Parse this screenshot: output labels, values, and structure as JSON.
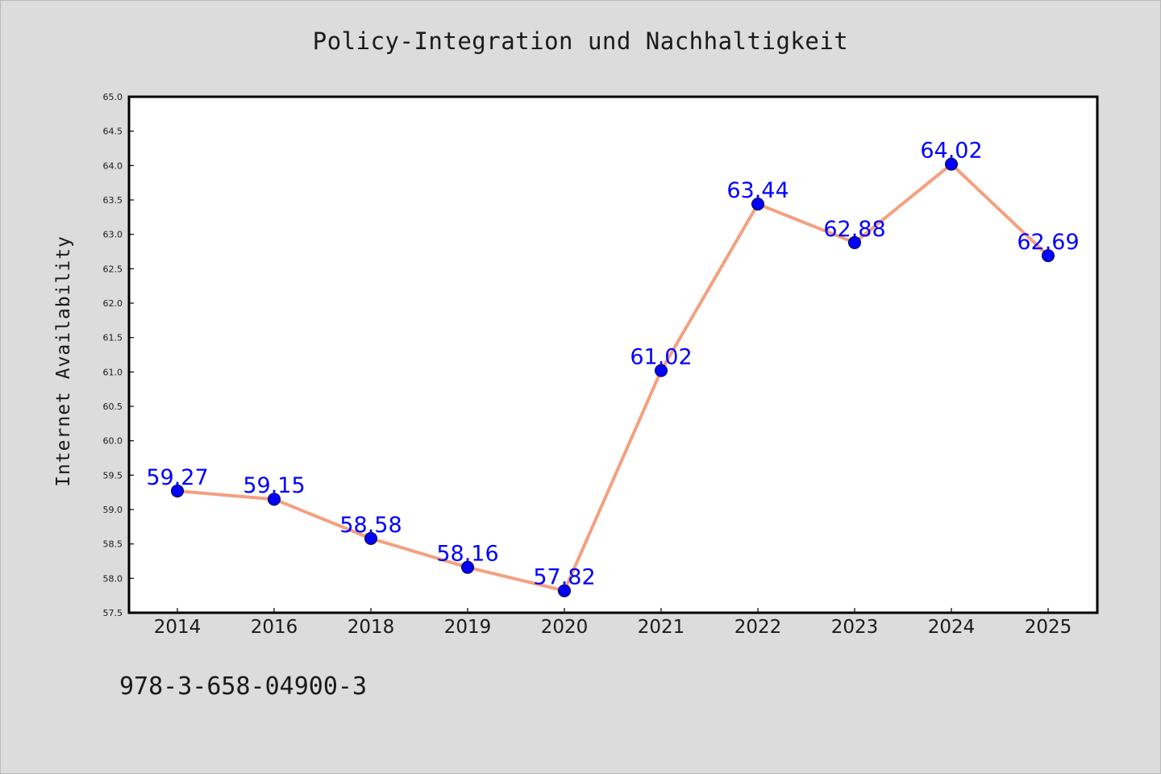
{
  "chart_data": {
    "type": "line",
    "title": "Policy-Integration und Nachhaltigkeit",
    "ylabel": "Internet Availability",
    "xlabel": "",
    "categories": [
      "2014",
      "2016",
      "2018",
      "2019",
      "2020",
      "2021",
      "2022",
      "2023",
      "2024",
      "2025"
    ],
    "values": [
      59.27,
      59.15,
      58.58,
      58.16,
      57.82,
      61.02,
      63.44,
      62.88,
      64.02,
      62.69
    ],
    "value_labels": [
      "59.27",
      "59.15",
      "58.58",
      "58.16",
      "57.82",
      "61.02",
      "63.44",
      "62.88",
      "64.02",
      "62.69"
    ],
    "ylim": [
      57.5,
      65.0
    ],
    "yticks": [
      "57.5",
      "58.0",
      "58.5",
      "59.0",
      "59.5",
      "60.0",
      "60.5",
      "61.0",
      "61.5",
      "62.0",
      "62.5",
      "63.0",
      "63.5",
      "64.0",
      "64.5",
      "65.0"
    ],
    "grid": false,
    "legend": "none",
    "line_color": "#f4a07f",
    "marker_color": "#0000ff",
    "label_color": "#0000ff"
  },
  "footer": {
    "isbn": "978-3-658-04900-3"
  }
}
